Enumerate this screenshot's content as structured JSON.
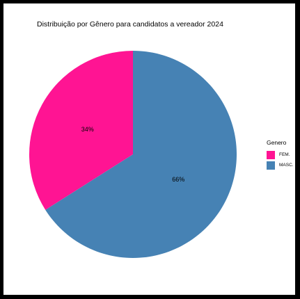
{
  "chart_data": {
    "type": "pie",
    "title": "Distribuição por Gênero para candidatos a vereador 2024",
    "legend_title": "Genero",
    "legend_position": "right",
    "slices": [
      {
        "name": "FEM.",
        "value": 34,
        "label": "34%",
        "color": "#FF1493"
      },
      {
        "name": "MASC.",
        "value": 66,
        "label": "66%",
        "color": "#4682B4"
      }
    ]
  }
}
